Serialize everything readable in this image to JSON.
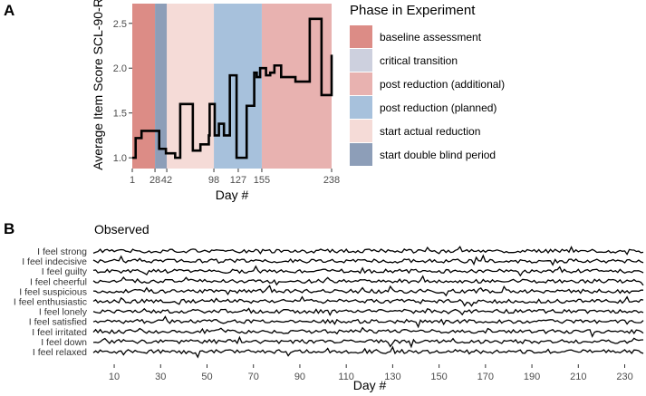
{
  "chart_data": [
    {
      "panel": "A",
      "type": "line",
      "step": true,
      "ylabel": "Average Item Score SCL-90-R",
      "xlabel": "Day #",
      "xlim": [
        1,
        238
      ],
      "ylim": [
        0.88,
        2.72
      ],
      "x_ticks": [
        1,
        28,
        42,
        98,
        127,
        155,
        238
      ],
      "x_tick_labels": [
        "1",
        "28",
        "42",
        "98",
        "127",
        "155",
        "238"
      ],
      "y_ticks": [
        1.0,
        1.5,
        2.0,
        2.5
      ],
      "y_tick_labels": [
        "1.0",
        "1.5",
        "2.0",
        "2.5"
      ],
      "legend_title": "Phase in Experiment",
      "legend_position": "right",
      "phases": [
        {
          "name": "baseline assessment",
          "color": "#dc8c86",
          "ranges": [
            [
              1,
              28
            ]
          ]
        },
        {
          "name": "critical transition",
          "color": "#cdd0de",
          "ranges": []
        },
        {
          "name": "post reduction (additional)",
          "color": "#e8b2b0",
          "ranges": [
            [
              155,
              238
            ]
          ]
        },
        {
          "name": "post reduction (planned)",
          "color": "#a7c1dc",
          "ranges": [
            [
              98,
              155
            ]
          ]
        },
        {
          "name": "start actual reduction",
          "color": "#f5dbd7",
          "ranges": [
            [
              42,
              98
            ]
          ]
        },
        {
          "name": "start double blind period",
          "color": "#8d9eb8",
          "ranges": [
            [
              28,
              42
            ]
          ]
        }
      ],
      "series": [
        {
          "name": "SCL-90-R average item score",
          "x": [
            1,
            5,
            12,
            28,
            33,
            41,
            52,
            58,
            72,
            73,
            82,
            92,
            93,
            99,
            104,
            110,
            117,
            125,
            135,
            137,
            146,
            149,
            153,
            160,
            165,
            170,
            178,
            195,
            202,
            212,
            226,
            233,
            238
          ],
          "y": [
            1.0,
            1.22,
            1.3,
            1.3,
            1.1,
            1.05,
            1.0,
            1.6,
            1.6,
            1.08,
            1.15,
            1.25,
            1.6,
            1.25,
            1.38,
            1.25,
            1.92,
            1.0,
            1.0,
            1.58,
            1.95,
            1.9,
            2.0,
            1.92,
            1.95,
            2.03,
            1.9,
            1.85,
            1.85,
            2.55,
            1.7,
            1.7,
            2.15
          ]
        }
      ]
    },
    {
      "panel": "B",
      "type": "line",
      "title": "Observed",
      "xlabel": "Day #",
      "xlim": [
        1,
        238
      ],
      "x_ticks": [
        10,
        30,
        50,
        70,
        90,
        110,
        130,
        150,
        170,
        190,
        210,
        230
      ],
      "x_tick_labels": [
        "10",
        "30",
        "50",
        "70",
        "90",
        "110",
        "130",
        "150",
        "170",
        "190",
        "210",
        "230"
      ],
      "series_labels": [
        "I feel strong",
        "I feel indecisive",
        "I feel guilty",
        "I feel cheerful",
        "I feel suspicious",
        "I feel enthusiastic",
        "I feel lonely",
        "I feel satisfied",
        "I feel irritated",
        "I feel down",
        "I feel relaxed"
      ],
      "days": 238,
      "note": "Eleven daily item scores drawn as stacked line traces."
    }
  ]
}
